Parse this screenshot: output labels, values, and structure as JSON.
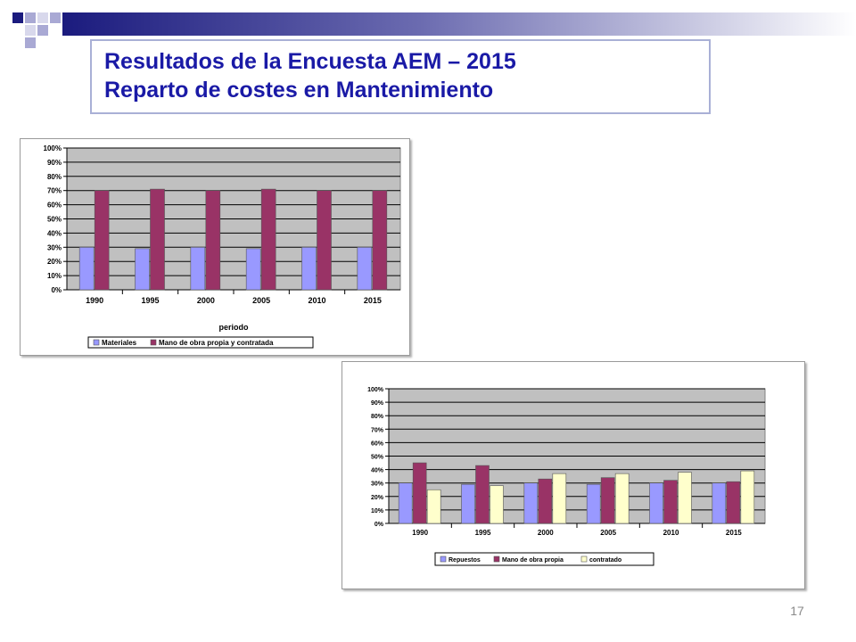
{
  "slide": {
    "title_line1": "Resultados de la Encuesta AEM – 2015",
    "title_line2": "Reparto de costes en Mantenimiento",
    "page_number": "17",
    "colors": {
      "title": "#1a1aa6",
      "decor_dark": "#1b1b7e",
      "decor_light": "#c9c9e2",
      "plot_bg": "#c0c0c0",
      "title_border": "#a9b0d6"
    }
  },
  "chart_data": [
    {
      "type": "bar",
      "title": "",
      "xlabel": "periodo",
      "ylabel": "",
      "categories": [
        "1990",
        "1995",
        "2000",
        "2005",
        "2010",
        "2015"
      ],
      "yticks": [
        "0%",
        "10%",
        "20%",
        "30%",
        "40%",
        "50%",
        "60%",
        "70%",
        "80%",
        "90%",
        "100%"
      ],
      "ylim": [
        0,
        100
      ],
      "grid": true,
      "legend_position": "bottom",
      "series": [
        {
          "name": "Materiales",
          "color": "#9999ff",
          "values": [
            30,
            29,
            30,
            29,
            30,
            30
          ]
        },
        {
          "name": "Mano de obra propia y contratada",
          "color": "#993366",
          "values": [
            70,
            71,
            70,
            71,
            70,
            70
          ]
        }
      ]
    },
    {
      "type": "bar",
      "title": "",
      "xlabel": "",
      "ylabel": "",
      "categories": [
        "1990",
        "1995",
        "2000",
        "2005",
        "2010",
        "2015"
      ],
      "yticks": [
        "0%",
        "10%",
        "20%",
        "30%",
        "40%",
        "50%",
        "60%",
        "70%",
        "80%",
        "90%",
        "100%"
      ],
      "ylim": [
        0,
        100
      ],
      "grid": true,
      "legend_position": "bottom",
      "series": [
        {
          "name": "Repuestos",
          "color": "#9999ff",
          "values": [
            30,
            29,
            30,
            29,
            30,
            30
          ]
        },
        {
          "name": "Mano de obra propia",
          "color": "#993366",
          "values": [
            45,
            43,
            33,
            34,
            32,
            31
          ]
        },
        {
          "name": "contratado",
          "color": "#ffffcc",
          "values": [
            25,
            28,
            37,
            37,
            38,
            39
          ]
        }
      ]
    }
  ]
}
